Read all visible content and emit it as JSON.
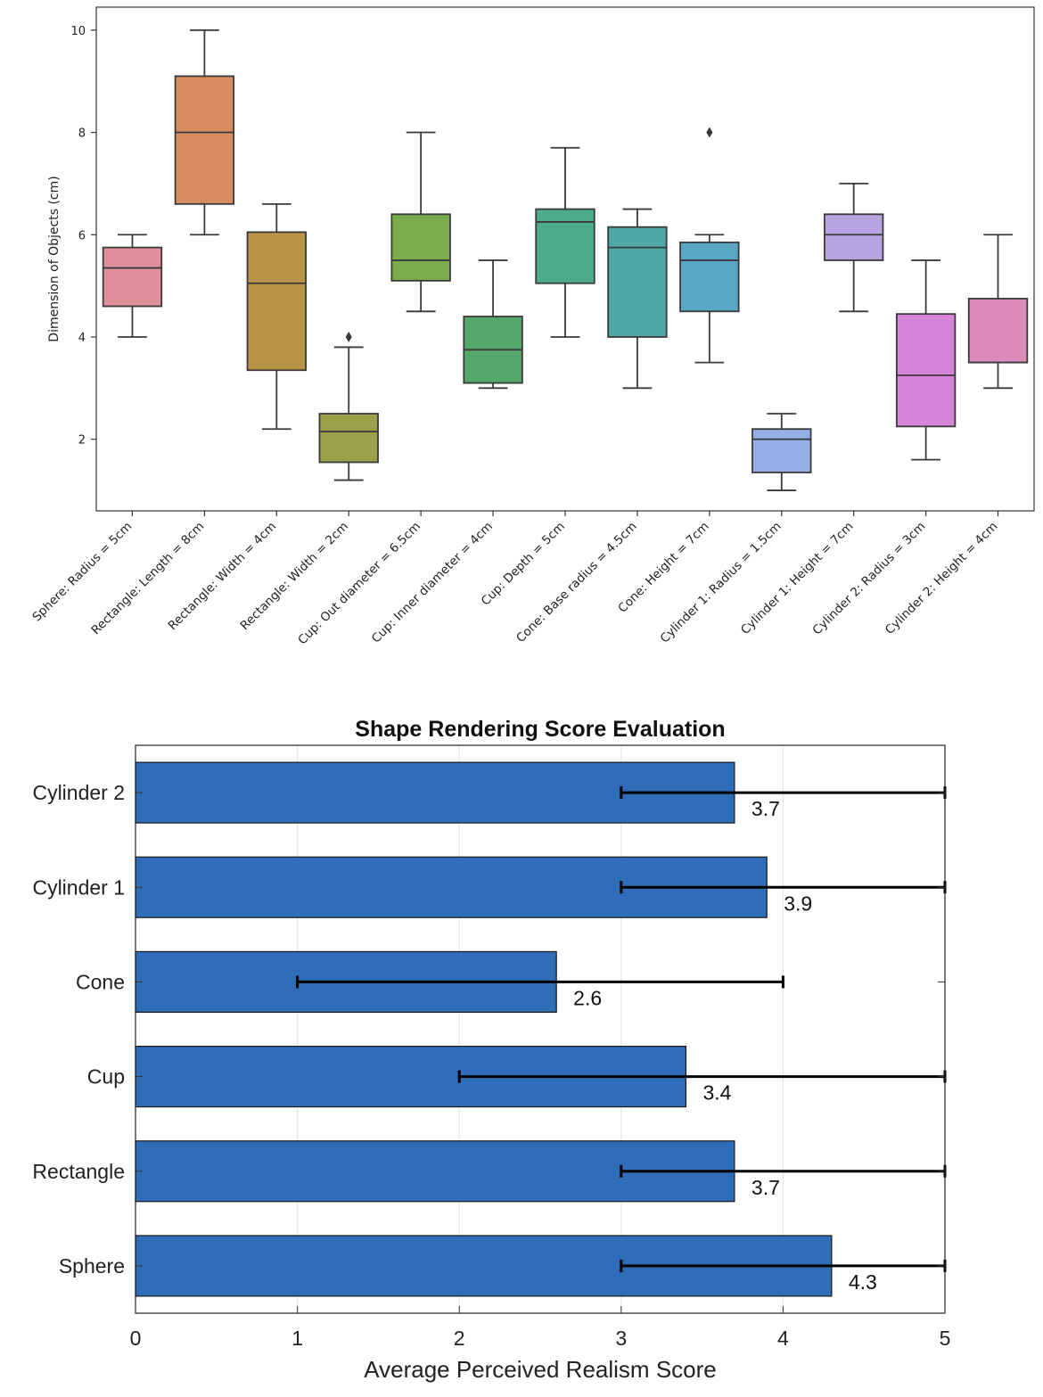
{
  "chart_data": [
    {
      "type": "box",
      "title": "",
      "xlabel": "",
      "ylabel": "Dimension of Objects (cm)",
      "ylim": [
        0.6,
        10.45
      ],
      "yticks": [
        2,
        4,
        6,
        8,
        10
      ],
      "series": [
        {
          "label": "Sphere: Radius = 5cm",
          "color": "#e0909a",
          "whisker_low": 4.0,
          "q1": 4.6,
          "median": 5.35,
          "q3": 5.75,
          "whisker_high": 6.0,
          "outliers": []
        },
        {
          "label": "Rectangle: Length = 8cm",
          "color": "#d98b5d",
          "whisker_low": 6.0,
          "q1": 6.6,
          "median": 8.0,
          "q3": 9.1,
          "whisker_high": 10.0,
          "outliers": []
        },
        {
          "label": "Rectangle: Width = 4cm",
          "color": "#b89449",
          "whisker_low": 2.2,
          "q1": 3.35,
          "median": 5.05,
          "q3": 6.05,
          "whisker_high": 6.6,
          "outliers": []
        },
        {
          "label": "Rectangle: Width = 2cm",
          "color": "#9da04a",
          "whisker_low": 1.2,
          "q1": 1.55,
          "median": 2.15,
          "q3": 2.5,
          "whisker_high": 3.8,
          "outliers": [
            4.0
          ]
        },
        {
          "label": "Cup: Out diameter = 6.5cm",
          "color": "#7aab4d",
          "whisker_low": 4.5,
          "q1": 5.1,
          "median": 5.5,
          "q3": 6.4,
          "whisker_high": 8.0,
          "outliers": []
        },
        {
          "label": "Cup: Inner diameter = 4cm",
          "color": "#55a86b",
          "whisker_low": 3.0,
          "q1": 3.1,
          "median": 3.75,
          "q3": 4.4,
          "whisker_high": 5.5,
          "outliers": []
        },
        {
          "label": "Cup: Depth = 5cm",
          "color": "#4eab8e",
          "whisker_low": 4.0,
          "q1": 5.05,
          "median": 6.25,
          "q3": 6.5,
          "whisker_high": 7.7,
          "outliers": []
        },
        {
          "label": "Cone: Base radius = 4.5cm",
          "color": "#4fa8a6",
          "whisker_low": 3.0,
          "q1": 4.0,
          "median": 5.75,
          "q3": 6.15,
          "whisker_high": 6.5,
          "outliers": []
        },
        {
          "label": "Cone: Height = 7cm",
          "color": "#57a7c4",
          "whisker_low": 3.5,
          "q1": 4.5,
          "median": 5.5,
          "q3": 5.85,
          "whisker_high": 6.0,
          "outliers": [
            8.0
          ]
        },
        {
          "label": "Cylinder 1: Radius = 1.5cm",
          "color": "#94afe6",
          "whisker_low": 1.0,
          "q1": 1.35,
          "median": 2.0,
          "q3": 2.2,
          "whisker_high": 2.5,
          "outliers": []
        },
        {
          "label": "Cylinder 1: Height = 7cm",
          "color": "#b9a2e0",
          "whisker_low": 4.5,
          "q1": 5.5,
          "median": 6.0,
          "q3": 6.4,
          "whisker_high": 7.0,
          "outliers": []
        },
        {
          "label": "Cylinder 2: Radius = 3cm",
          "color": "#d683da",
          "whisker_low": 1.6,
          "q1": 2.25,
          "median": 3.25,
          "q3": 4.45,
          "whisker_high": 5.5,
          "outliers": []
        },
        {
          "label": "Cylinder 2: Height = 4cm",
          "color": "#dd8cba",
          "whisker_low": 3.0,
          "q1": 3.5,
          "median": 3.5,
          "q3": 4.75,
          "whisker_high": 6.0,
          "outliers": []
        }
      ]
    },
    {
      "type": "bar",
      "orientation": "horizontal",
      "title": "Shape Rendering Score Evaluation",
      "xlabel": "Average Perceived Realism Score",
      "ylabel": "",
      "xlim": [
        0,
        5
      ],
      "xticks": [
        0,
        1,
        2,
        3,
        4,
        5
      ],
      "bar_color": "#2f6db8",
      "grid": true,
      "categories": [
        "Cylinder 2",
        "Cylinder 1",
        "Cone",
        "Cup",
        "Rectangle",
        "Sphere"
      ],
      "values": [
        3.7,
        3.9,
        2.6,
        3.4,
        3.7,
        4.3
      ],
      "value_labels": [
        "3.7",
        "3.9",
        "2.6",
        "3.4",
        "3.7",
        "4.3"
      ],
      "error_low": [
        3,
        3,
        1,
        2,
        3,
        3
      ],
      "error_high": [
        5,
        5,
        4,
        5,
        5,
        5
      ]
    }
  ]
}
